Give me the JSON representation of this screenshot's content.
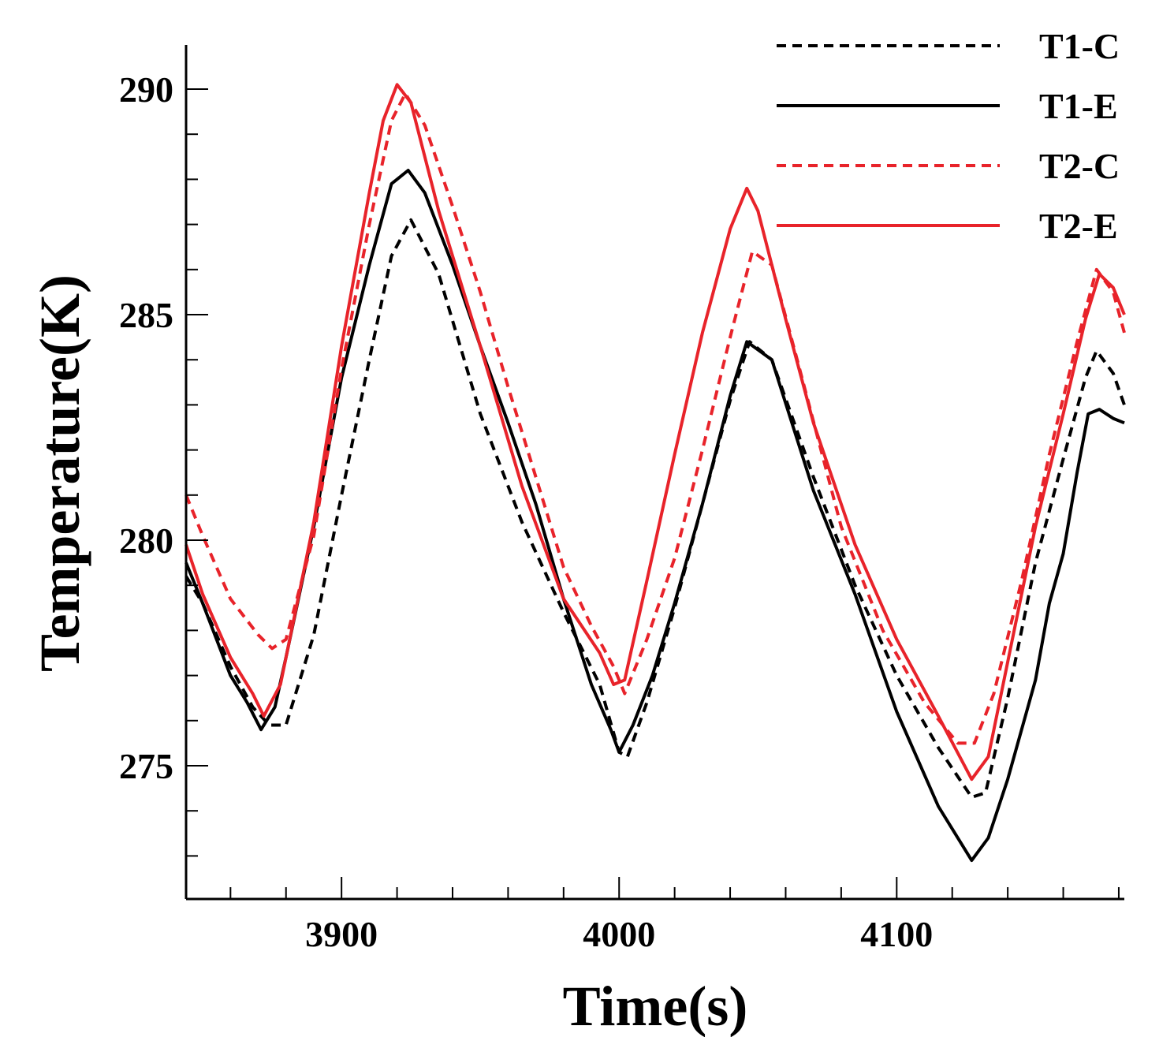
{
  "chart_data": {
    "type": "line",
    "title": "",
    "xlabel": "Time(s)",
    "ylabel": "Temperature(K)",
    "xlim": [
      3844,
      4182
    ],
    "ylim": [
      272,
      291
    ],
    "x_ticks": [
      3900,
      4000,
      4100
    ],
    "x_tick_labels": [
      "3900",
      "4000",
      "4100"
    ],
    "y_ticks": [
      275,
      280,
      285,
      290
    ],
    "y_tick_labels": [
      "275",
      "280",
      "285",
      "290"
    ],
    "legend_position": "top-right",
    "series": [
      {
        "name": "T1-C",
        "color": "#000000",
        "dash": "dashed",
        "x": [
          3844,
          3850,
          3860,
          3868,
          3874,
          3880,
          3890,
          3900,
          3910,
          3918,
          3925,
          3935,
          3950,
          3965,
          3980,
          3993,
          4000,
          4003,
          4010,
          4020,
          4030,
          4040,
          4047,
          4055,
          4070,
          4085,
          4100,
          4115,
          4127,
          4132,
          4140,
          4150,
          4160,
          4168,
          4172,
          4178,
          4182
        ],
        "values": [
          279.2,
          278.6,
          277.2,
          276.3,
          275.9,
          275.9,
          277.9,
          281.0,
          284.0,
          286.3,
          287.1,
          285.9,
          282.8,
          280.4,
          278.4,
          276.8,
          275.3,
          275.2,
          276.4,
          278.5,
          280.8,
          283.1,
          284.4,
          284.0,
          281.4,
          279.0,
          277.0,
          275.4,
          274.3,
          274.4,
          276.5,
          279.5,
          281.8,
          283.6,
          284.2,
          283.7,
          283.0
        ]
      },
      {
        "name": "T1-E",
        "color": "#000000",
        "dash": "solid",
        "x": [
          3844,
          3850,
          3860,
          3866,
          3871,
          3876,
          3880,
          3890,
          3900,
          3910,
          3918,
          3924,
          3930,
          3940,
          3950,
          3960,
          3970,
          3980,
          3990,
          3997,
          4000,
          4005,
          4012,
          4020,
          4030,
          4040,
          4046,
          4055,
          4070,
          4085,
          4100,
          4115,
          4127,
          4133,
          4140,
          4150,
          4155,
          4160,
          4165,
          4169,
          4173,
          4178,
          4182
        ],
        "values": [
          279.5,
          278.6,
          277.0,
          276.4,
          275.8,
          276.3,
          277.4,
          280.3,
          283.6,
          286.1,
          287.9,
          288.2,
          287.7,
          286.1,
          284.3,
          282.6,
          280.8,
          278.7,
          276.8,
          275.8,
          275.3,
          275.9,
          277.0,
          278.6,
          280.8,
          283.2,
          284.4,
          284.0,
          281.1,
          278.8,
          276.2,
          274.1,
          272.9,
          273.4,
          274.7,
          276.9,
          278.6,
          279.7,
          281.5,
          282.8,
          282.9,
          282.7,
          282.6
        ]
      },
      {
        "name": "T2-C",
        "color": "#e8232a",
        "dash": "dashed",
        "x": [
          3844,
          3850,
          3860,
          3870,
          3875,
          3880,
          3890,
          3900,
          3910,
          3918,
          3923,
          3930,
          3940,
          3950,
          3960,
          3970,
          3980,
          3990,
          3998,
          4002,
          4010,
          4020,
          4030,
          4040,
          4048,
          4055,
          4065,
          4080,
          4095,
          4110,
          4122,
          4128,
          4135,
          4145,
          4155,
          4165,
          4172,
          4178,
          4182
        ],
        "values": [
          281.0,
          280.1,
          278.7,
          277.9,
          277.6,
          277.8,
          280.1,
          283.8,
          287.0,
          289.3,
          289.9,
          289.2,
          287.4,
          285.5,
          283.4,
          281.4,
          279.4,
          278.1,
          277.2,
          276.6,
          277.8,
          279.6,
          282.0,
          284.5,
          286.4,
          286.1,
          283.8,
          280.3,
          278.0,
          276.4,
          275.5,
          275.5,
          276.6,
          279.1,
          281.9,
          284.4,
          286.0,
          285.5,
          284.6
        ]
      },
      {
        "name": "T2-E",
        "color": "#e8232a",
        "dash": "solid",
        "x": [
          3844,
          3850,
          3860,
          3868,
          3872,
          3878,
          3890,
          3900,
          3910,
          3915,
          3920,
          3925,
          3935,
          3950,
          3965,
          3980,
          3993,
          3998,
          4002,
          4010,
          4020,
          4030,
          4040,
          4046,
          4050,
          4060,
          4070,
          4085,
          4100,
          4115,
          4127,
          4133,
          4140,
          4150,
          4160,
          4168,
          4173,
          4178,
          4182
        ],
        "values": [
          279.9,
          278.8,
          277.4,
          276.6,
          276.1,
          276.8,
          280.4,
          284.3,
          287.7,
          289.3,
          290.1,
          289.7,
          287.3,
          284.3,
          281.2,
          278.7,
          277.5,
          276.8,
          276.9,
          279.1,
          281.9,
          284.6,
          286.9,
          287.8,
          287.3,
          284.9,
          282.6,
          279.9,
          277.8,
          276.1,
          274.7,
          275.2,
          277.3,
          280.3,
          282.8,
          284.9,
          285.9,
          285.6,
          285.0
        ]
      }
    ]
  }
}
